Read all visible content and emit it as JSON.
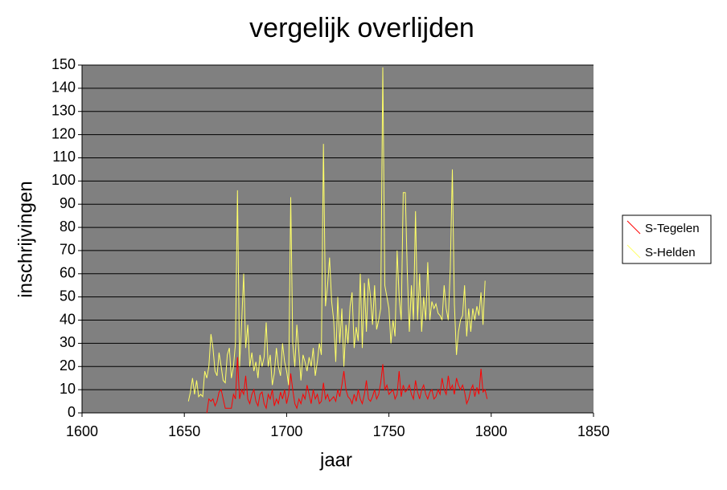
{
  "chart_data": {
    "type": "line",
    "title": "vergelijk overlijden",
    "x_label": "jaar",
    "y_label": "inschrijvingen",
    "xlim": [
      1600,
      1850
    ],
    "xticks": [
      1600,
      1650,
      1700,
      1750,
      1800,
      1850
    ],
    "ylim": [
      0,
      150
    ],
    "yticks": [
      0,
      10,
      20,
      30,
      40,
      50,
      60,
      70,
      80,
      90,
      100,
      110,
      120,
      130,
      140,
      150
    ],
    "grid": true,
    "legend": "right",
    "x": [
      1652,
      1653,
      1654,
      1655,
      1656,
      1657,
      1658,
      1659,
      1660,
      1661,
      1662,
      1663,
      1664,
      1665,
      1666,
      1667,
      1668,
      1669,
      1670,
      1671,
      1672,
      1673,
      1674,
      1675,
      1676,
      1677,
      1678,
      1679,
      1680,
      1681,
      1682,
      1683,
      1684,
      1685,
      1686,
      1687,
      1688,
      1689,
      1690,
      1691,
      1692,
      1693,
      1694,
      1695,
      1696,
      1697,
      1698,
      1699,
      1700,
      1701,
      1702,
      1703,
      1704,
      1705,
      1706,
      1707,
      1708,
      1709,
      1710,
      1711,
      1712,
      1713,
      1714,
      1715,
      1716,
      1717,
      1718,
      1719,
      1720,
      1721,
      1722,
      1723,
      1724,
      1725,
      1726,
      1727,
      1728,
      1729,
      1730,
      1731,
      1732,
      1733,
      1734,
      1735,
      1736,
      1737,
      1738,
      1739,
      1740,
      1741,
      1742,
      1743,
      1744,
      1745,
      1746,
      1747,
      1748,
      1749,
      1750,
      1751,
      1752,
      1753,
      1754,
      1755,
      1756,
      1757,
      1758,
      1759,
      1760,
      1761,
      1762,
      1763,
      1764,
      1765,
      1766,
      1767,
      1768,
      1769,
      1770,
      1771,
      1772,
      1773,
      1774,
      1775,
      1776,
      1777,
      1778,
      1779,
      1780,
      1781,
      1782,
      1783,
      1784,
      1785,
      1786,
      1787,
      1788,
      1789,
      1790,
      1791,
      1792,
      1793,
      1794,
      1795,
      1796,
      1797,
      1798
    ],
    "series": [
      {
        "name": "S-Tegelen",
        "color": "#ff0000",
        "values": [
          null,
          null,
          null,
          null,
          null,
          null,
          null,
          null,
          null,
          0,
          6,
          5,
          6,
          3,
          5,
          9,
          10,
          6,
          2,
          2,
          2,
          2,
          8,
          6,
          24,
          6,
          10,
          8,
          16,
          6,
          4,
          8,
          10,
          5,
          3,
          8,
          9,
          4,
          2,
          8,
          6,
          10,
          3,
          6,
          4,
          9,
          6,
          10,
          4,
          8,
          17,
          10,
          4,
          2,
          6,
          4,
          8,
          6,
          12,
          8,
          4,
          10,
          6,
          8,
          4,
          5,
          13,
          6,
          8,
          5,
          6,
          7,
          5,
          10,
          7,
          12,
          18,
          10,
          7,
          6,
          4,
          8,
          5,
          10,
          6,
          4,
          8,
          14,
          6,
          5,
          7,
          10,
          6,
          8,
          13,
          21,
          10,
          12,
          8,
          9,
          10,
          6,
          8,
          18,
          7,
          12,
          9,
          10,
          12,
          8,
          6,
          14,
          9,
          6,
          10,
          12,
          8,
          6,
          9,
          10,
          6,
          7,
          10,
          8,
          15,
          10,
          8,
          16,
          10,
          12,
          8,
          15,
          12,
          10,
          12,
          9,
          4,
          6,
          10,
          12,
          7,
          11,
          8,
          19,
          9,
          10,
          6
        ]
      },
      {
        "name": "S-Helden",
        "color": "#ffff66",
        "values": [
          5,
          9,
          15,
          8,
          14,
          7,
          8,
          7,
          18,
          15,
          20,
          34,
          28,
          18,
          16,
          26,
          20,
          14,
          13,
          25,
          28,
          15,
          20,
          30,
          96,
          20,
          38,
          60,
          28,
          38,
          20,
          26,
          18,
          22,
          15,
          25,
          20,
          24,
          39,
          20,
          25,
          12,
          17,
          28,
          20,
          16,
          30,
          22,
          18,
          12,
          93,
          30,
          20,
          38,
          26,
          14,
          25,
          22,
          18,
          24,
          20,
          28,
          16,
          22,
          30,
          25,
          116,
          46,
          55,
          67,
          48,
          40,
          22,
          50,
          30,
          45,
          20,
          38,
          30,
          46,
          52,
          28,
          37,
          31,
          60,
          28,
          56,
          35,
          58,
          50,
          38,
          55,
          36,
          40,
          45,
          149,
          55,
          50,
          45,
          30,
          40,
          33,
          70,
          50,
          40,
          95,
          95,
          60,
          35,
          55,
          40,
          87,
          40,
          60,
          35,
          50,
          40,
          65,
          40,
          48,
          45,
          47,
          43,
          42,
          40,
          55,
          45,
          40,
          62,
          105,
          47,
          25,
          35,
          40,
          42,
          55,
          33,
          45,
          35,
          45,
          40,
          46,
          42,
          52,
          38,
          57,
          null
        ]
      }
    ]
  }
}
